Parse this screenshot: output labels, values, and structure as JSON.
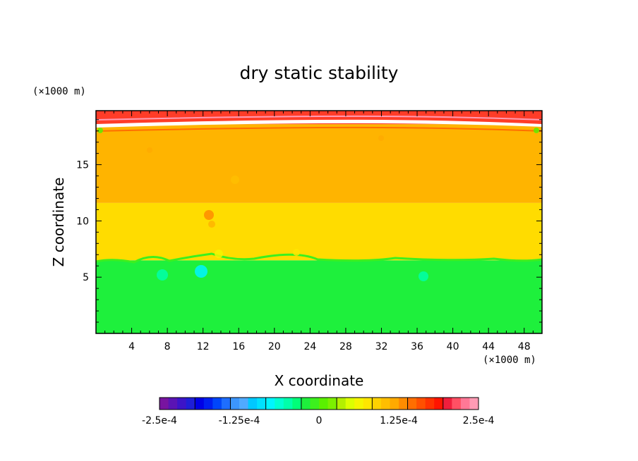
{
  "chart_data": {
    "type": "heatmap",
    "title": "dry static stability",
    "xlabel": "X coordinate",
    "ylabel": "Z coordinate",
    "x_unit": "(×1000 m)",
    "y_unit": "(×1000 m)",
    "xlim": [
      0,
      50
    ],
    "ylim": [
      0,
      19.8
    ],
    "x_ticks": [
      4,
      8,
      12,
      16,
      20,
      24,
      28,
      32,
      36,
      40,
      44,
      48
    ],
    "y_ticks": [
      5,
      10,
      15
    ],
    "layers": [
      {
        "z_bottom": 0.0,
        "z_top": 6.5,
        "value": 1.25e-05,
        "color": "#1ef03c"
      },
      {
        "z_bottom": 6.5,
        "z_top": 11.6,
        "value": 0.0001,
        "color": "#ffdc00"
      },
      {
        "z_bottom": 11.6,
        "z_top": 18.6,
        "value": 0.00013,
        "color": "#ffb400"
      },
      {
        "z_bottom": 18.6,
        "z_top": 19.8,
        "value": 0.00025,
        "color": "#ff3c28"
      }
    ],
    "colorbar": {
      "min": -0.00025,
      "max": 0.00025,
      "tick_labels": [
        "-2.5e-4",
        "-1.25e-4",
        "0",
        "1.25e-4",
        "2.5e-4"
      ],
      "tick_values": [
        -0.00025,
        -0.000125,
        0,
        0.000125,
        0.00025
      ],
      "colors": [
        "#7814a0",
        "#5a14b4",
        "#3c14c8",
        "#1e1ed7",
        "#0000e6",
        "#001ef0",
        "#0046fa",
        "#1e6eff",
        "#3c96ff",
        "#50aaff",
        "#00c8ff",
        "#00e1ff",
        "#00f5ff",
        "#00ffd2",
        "#00ffaa",
        "#00ff78",
        "#1ef03c",
        "#3cf01e",
        "#5af000",
        "#7cf000",
        "#b4f000",
        "#dcff00",
        "#f5f500",
        "#ffe600",
        "#ffd200",
        "#ffbe00",
        "#ffaa00",
        "#ff8c00",
        "#ff6e00",
        "#ff5000",
        "#ff3200",
        "#ff1400",
        "#f01e3c",
        "#ff5064",
        "#ff7896",
        "#ff9bb4"
      ]
    }
  }
}
